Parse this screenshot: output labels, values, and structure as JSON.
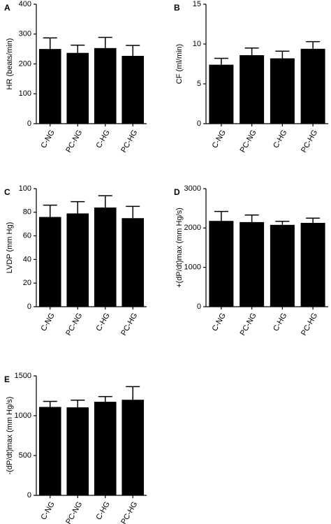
{
  "chart_data": [
    {
      "type": "bar",
      "panel_label": "A",
      "ylabel": "HR (beats/min)",
      "categories": [
        "C-NG",
        "PC-NG",
        "C-HG",
        "PC-HG"
      ],
      "values": [
        250,
        237,
        253,
        227
      ],
      "errors": [
        37,
        26,
        36,
        35
      ],
      "ylim": [
        0,
        400
      ],
      "yticks": [
        0,
        100,
        200,
        300,
        400
      ],
      "color": "#000000"
    },
    {
      "type": "bar",
      "panel_label": "B",
      "ylabel": "CF (ml/min)",
      "categories": [
        "C-NG",
        "PC-NG",
        "C-HG",
        "PC-HG"
      ],
      "values": [
        7.4,
        8.6,
        8.2,
        9.4
      ],
      "errors": [
        0.8,
        0.9,
        0.9,
        0.9
      ],
      "ylim": [
        0,
        15
      ],
      "yticks": [
        0,
        5,
        10,
        15
      ],
      "color": "#000000"
    },
    {
      "type": "bar",
      "panel_label": "C",
      "ylabel": "LVDP (mm Hg)",
      "categories": [
        "C-NG",
        "PC-NG",
        "C-HG",
        "PC-HG"
      ],
      "values": [
        76,
        79,
        84,
        75
      ],
      "errors": [
        10,
        10,
        10,
        10
      ],
      "ylim": [
        0,
        100
      ],
      "yticks": [
        0,
        20,
        40,
        60,
        80,
        100
      ],
      "color": "#000000"
    },
    {
      "type": "bar",
      "panel_label": "D",
      "ylabel": "+(dP/dt)max (mm Hg/s)",
      "categories": [
        "C-NG",
        "PC-NG",
        "C-HG",
        "PC-HG"
      ],
      "values": [
        2180,
        2150,
        2080,
        2130
      ],
      "errors": [
        240,
        180,
        90,
        120
      ],
      "ylim": [
        0,
        3000
      ],
      "yticks": [
        0,
        1000,
        2000,
        3000
      ],
      "color": "#000000"
    },
    {
      "type": "bar",
      "panel_label": "E",
      "ylabel": "-(dP/dt)max (mm Hg/s)",
      "categories": [
        "C-NG",
        "PC-NG",
        "C-HG",
        "PC-HG"
      ],
      "values": [
        1110,
        1105,
        1175,
        1200
      ],
      "errors": [
        70,
        90,
        65,
        165
      ],
      "ylim": [
        0,
        1500
      ],
      "yticks": [
        0,
        500,
        1000,
        1500
      ],
      "color": "#000000"
    }
  ]
}
